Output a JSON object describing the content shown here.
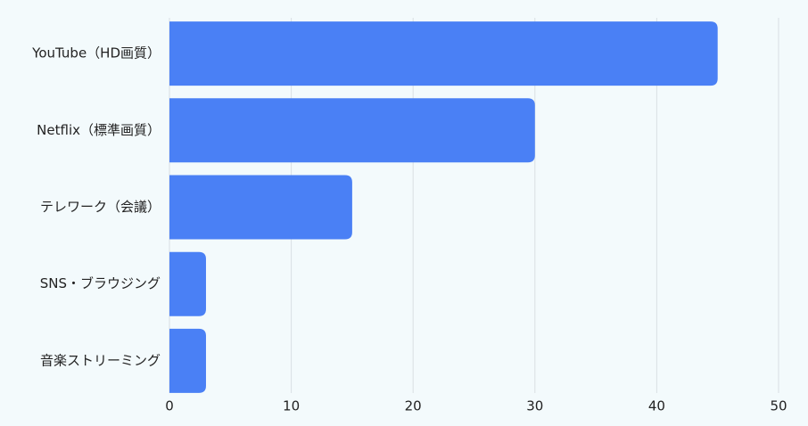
{
  "chart_data": {
    "type": "bar",
    "orientation": "horizontal",
    "categories": [
      "YouTube（HD画質）",
      "Netflix（標準画質）",
      "テレワーク（会議）",
      "SNS・ブラウジング",
      "音楽ストリーミング"
    ],
    "values": [
      45,
      30,
      15,
      3,
      3
    ],
    "color": "#4a80f5",
    "xlim": [
      0,
      50
    ],
    "xticks": [
      0,
      10,
      20,
      30,
      40,
      50
    ],
    "grid": true
  }
}
